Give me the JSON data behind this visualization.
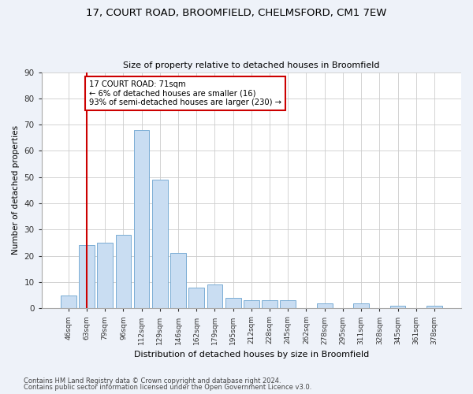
{
  "title1": "17, COURT ROAD, BROOMFIELD, CHELMSFORD, CM1 7EW",
  "title2": "Size of property relative to detached houses in Broomfield",
  "xlabel": "Distribution of detached houses by size in Broomfield",
  "ylabel": "Number of detached properties",
  "categories": [
    "46sqm",
    "63sqm",
    "79sqm",
    "96sqm",
    "112sqm",
    "129sqm",
    "146sqm",
    "162sqm",
    "179sqm",
    "195sqm",
    "212sqm",
    "228sqm",
    "245sqm",
    "262sqm",
    "278sqm",
    "295sqm",
    "311sqm",
    "328sqm",
    "345sqm",
    "361sqm",
    "378sqm"
  ],
  "values": [
    5,
    24,
    25,
    28,
    68,
    49,
    21,
    8,
    9,
    4,
    3,
    3,
    3,
    0,
    2,
    0,
    2,
    0,
    1,
    0,
    1
  ],
  "bar_color": "#c9ddf2",
  "bar_edge_color": "#7aadd4",
  "vline_x": 1.0,
  "vline_color": "#cc0000",
  "annotation_text": "17 COURT ROAD: 71sqm\n← 6% of detached houses are smaller (16)\n93% of semi-detached houses are larger (230) →",
  "annotation_box_color": "#ffffff",
  "annotation_box_edge_color": "#cc0000",
  "ylim": [
    0,
    90
  ],
  "yticks": [
    0,
    10,
    20,
    30,
    40,
    50,
    60,
    70,
    80,
    90
  ],
  "footer1": "Contains HM Land Registry data © Crown copyright and database right 2024.",
  "footer2": "Contains public sector information licensed under the Open Government Licence v3.0.",
  "bg_color": "#eef2f9",
  "plot_bg_color": "#ffffff"
}
